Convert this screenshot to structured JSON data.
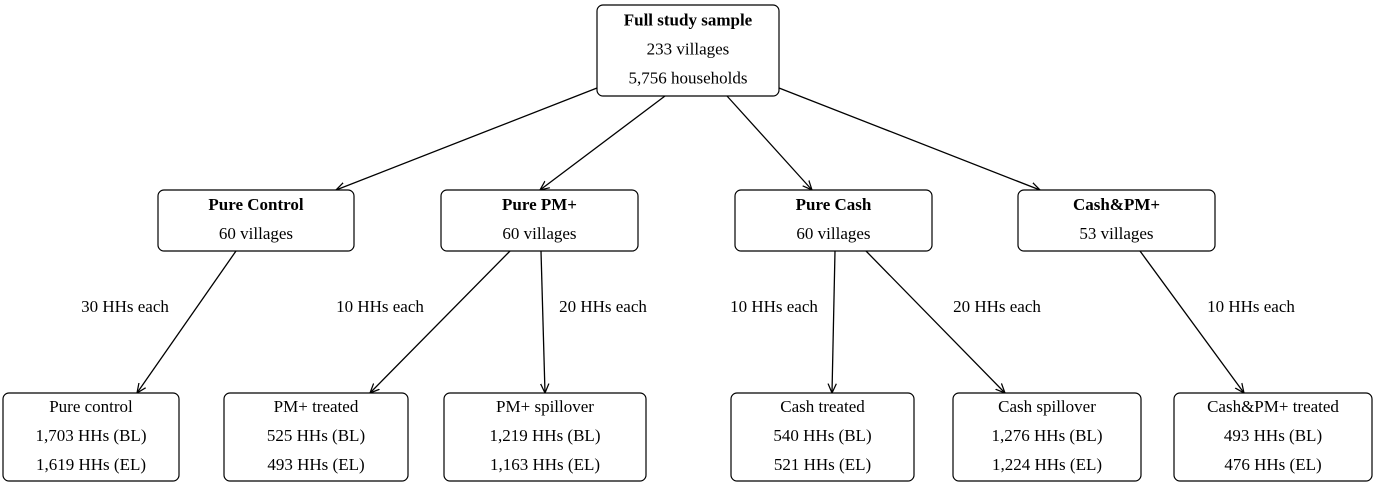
{
  "nodes": [
    {
      "lines": [
        "Full study sample",
        "233 villages",
        "5,756 households"
      ]
    },
    {
      "lines": [
        "Pure Control",
        "60 villages"
      ]
    },
    {
      "lines": [
        "Pure PM+",
        "60 villages"
      ]
    },
    {
      "lines": [
        "Pure Cash",
        "60 villages"
      ]
    },
    {
      "lines": [
        "Cash&PM+",
        "53 villages"
      ]
    },
    {
      "lines": [
        "Pure control",
        "1,703 HHs (BL)",
        "1,619 HHs (EL)"
      ]
    },
    {
      "lines": [
        "PM+ treated",
        "525 HHs (BL)",
        "493 HHs (EL)"
      ]
    },
    {
      "lines": [
        "PM+ spillover",
        "1,219 HHs (BL)",
        "1,163 HHs (EL)"
      ]
    },
    {
      "lines": [
        "Cash treated",
        "540 HHs (BL)",
        "521 HHs (EL)"
      ]
    },
    {
      "lines": [
        "Cash spillover",
        "1,276 HHs (BL)",
        "1,224 HHs (EL)"
      ]
    },
    {
      "lines": [
        "Cash&PM+ treated",
        "493 HHs (BL)",
        "476 HHs (EL)"
      ]
    }
  ],
  "edge_labels": [
    "30 HHs each",
    "10 HHs each",
    "20 HHs each",
    "10 HHs each",
    "20 HHs each",
    "10 HHs each"
  ]
}
